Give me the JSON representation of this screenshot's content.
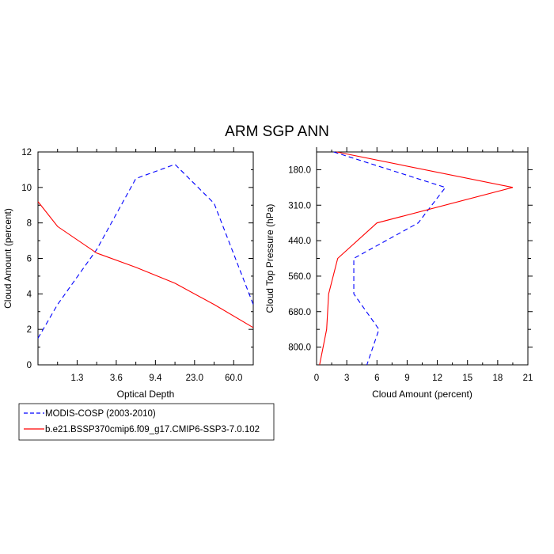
{
  "title": "ARM SGP ANN",
  "chart_data": [
    {
      "type": "line",
      "xlabel": "Optical Depth",
      "ylabel": "Cloud Amount (percent)",
      "x_ticks": [
        "1.3",
        "3.6",
        "9.4",
        "23.0",
        "60.0"
      ],
      "x_tick_positions": [
        1,
        2,
        3,
        4,
        5
      ],
      "xlim": [
        0,
        5.5
      ],
      "ylim": [
        0,
        12
      ],
      "y_ticks": [
        "0",
        "2",
        "4",
        "6",
        "8",
        "10",
        "12"
      ],
      "y_tick_values": [
        0,
        2,
        4,
        6,
        8,
        10,
        12
      ],
      "series": [
        {
          "name": "MODIS-COSP (2003-2010)",
          "color": "#0000ff",
          "dash": "dashed",
          "x": [
            0,
            0.5,
            1.5,
            2.5,
            3.5,
            4.5,
            5.5
          ],
          "y": [
            1.5,
            3.4,
            6.5,
            10.5,
            11.3,
            9.1,
            3.4
          ]
        },
        {
          "name": "b.e21.BSSP370cmip6.f09_g17.CMIP6-SSP3-7.0.102",
          "color": "#ff0000",
          "dash": "solid",
          "x": [
            0,
            0.5,
            1.5,
            2.5,
            3.5,
            4.5,
            5.5
          ],
          "y": [
            9.2,
            7.8,
            6.3,
            5.5,
            4.6,
            3.4,
            2.1
          ]
        }
      ]
    },
    {
      "type": "line",
      "xlabel": "Cloud Amount (percent)",
      "ylabel": "Cloud Top Pressure (hPa)",
      "x_ticks": [
        "0",
        "3",
        "6",
        "9",
        "12",
        "15",
        "18",
        "21"
      ],
      "x_tick_values": [
        0,
        3,
        6,
        9,
        12,
        15,
        18,
        21
      ],
      "xlim": [
        0,
        21
      ],
      "y_ticks": [
        "180.0",
        "310.0",
        "440.0",
        "560.0",
        "680.0",
        "800.0"
      ],
      "y_tick_positions": [
        1,
        2,
        3,
        4,
        5,
        6
      ],
      "ylim": [
        0.5,
        6.5
      ],
      "series": [
        {
          "name": "MODIS-COSP (2003-2010)",
          "color": "#0000ff",
          "dash": "dashed",
          "x": [
            1.7,
            12.8,
            10.1,
            3.7,
            3.7,
            6.2,
            5.0
          ],
          "y": [
            0.5,
            1.5,
            2.5,
            3.5,
            4.5,
            5.5,
            6.5
          ]
        },
        {
          "name": "b.e21.BSSP370cmip6.f09_g17.CMIP6-SSP3-7.0.102",
          "color": "#ff0000",
          "dash": "solid",
          "x": [
            2.0,
            19.5,
            6.0,
            2.1,
            1.2,
            1.0,
            0.3
          ],
          "y": [
            0.5,
            1.5,
            2.5,
            3.5,
            4.5,
            5.5,
            6.5
          ]
        }
      ]
    }
  ],
  "legend": {
    "placement": "bottom-left",
    "items": [
      {
        "label": "MODIS-COSP (2003-2010)",
        "color": "#0000ff",
        "dash": "dashed"
      },
      {
        "label": "b.e21.BSSP370cmip6.f09_g17.CMIP6-SSP3-7.0.102",
        "color": "#ff0000",
        "dash": "solid"
      }
    ]
  }
}
